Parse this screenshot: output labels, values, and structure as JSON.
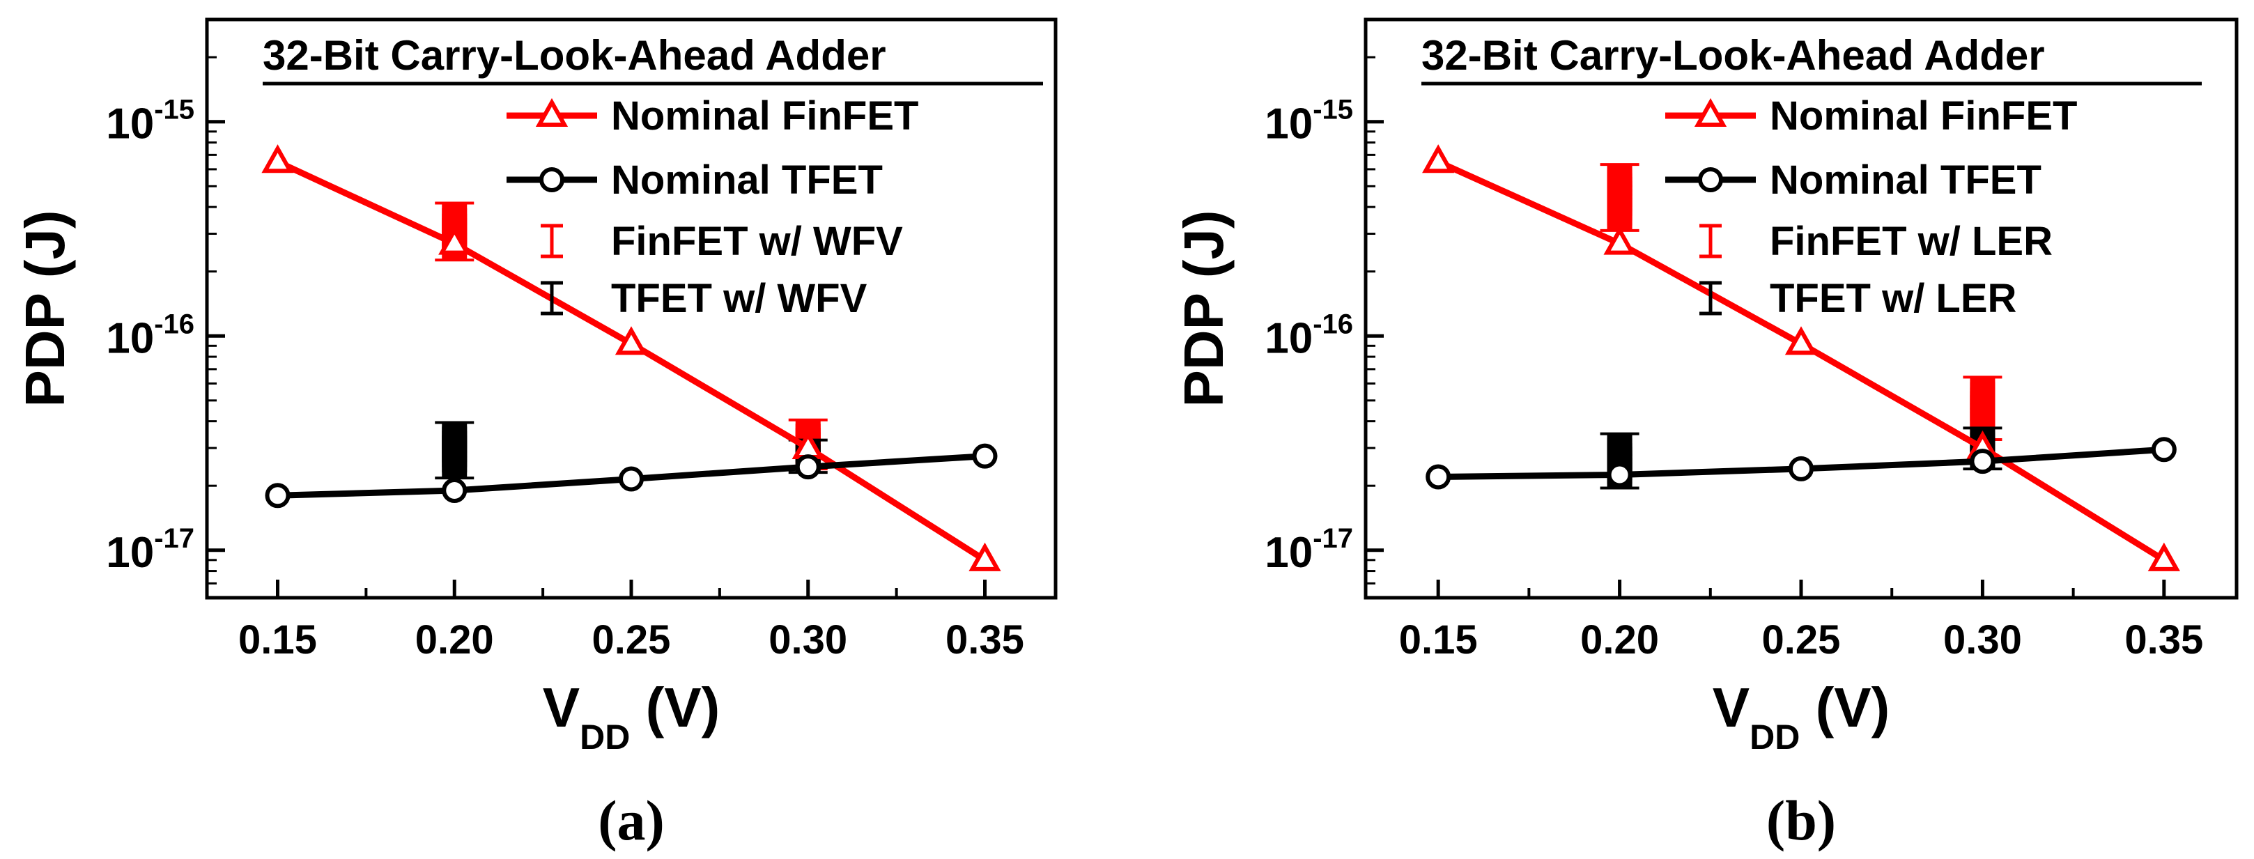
{
  "colors": {
    "finfet": "#ff0000",
    "tfet": "#000000",
    "axis": "#000000"
  },
  "chart_data": [
    {
      "type": "line",
      "panel_label": "(a)",
      "title": "32-Bit Carry-Look-Ahead Adder",
      "xlabel": "V",
      "xlabel_sub": "DD",
      "xlabel_unit": " (V)",
      "ylabel": "PDP (J)",
      "xlim": [
        0.13,
        0.37
      ],
      "ylim": [
        6e-18,
        3e-15
      ],
      "yscale": "log",
      "x_ticks": [
        0.15,
        0.2,
        0.25,
        0.3,
        0.35
      ],
      "x_tick_labels": [
        "0.15",
        "0.20",
        "0.25",
        "0.30",
        "0.35"
      ],
      "y_ticks": [
        {
          "value": 1e-15,
          "base": "10",
          "exp": "-15"
        },
        {
          "value": 1e-16,
          "base": "10",
          "exp": "-16"
        },
        {
          "value": 1e-17,
          "base": "10",
          "exp": "-17"
        }
      ],
      "legend_position": "top-right",
      "series": [
        {
          "name": "Nominal FinFET",
          "color": "#ff0000",
          "marker": "triangle",
          "x": [
            0.15,
            0.2,
            0.25,
            0.3,
            0.35
          ],
          "y": [
            6.5e-16,
            2.7e-16,
            9.2e-17,
            3e-17,
            9e-18
          ]
        },
        {
          "name": "Nominal TFET",
          "color": "#000000",
          "marker": "circle",
          "x": [
            0.15,
            0.2,
            0.25,
            0.3,
            0.35
          ],
          "y": [
            1.8e-17,
            1.9e-17,
            2.15e-17,
            2.45e-17,
            2.75e-17
          ]
        }
      ],
      "variation": [
        {
          "name": "FinFET w/ WFV",
          "color": "#ff0000",
          "groups": [
            {
              "x": 0.2,
              "values": [
                2.55e-16,
                2.7e-16,
                2.85e-16,
                3e-16,
                3.15e-16,
                3.3e-16,
                3.5e-16,
                3.7e-16
              ]
            },
            {
              "x": 0.3,
              "values": [
                2.7e-17,
                2.85e-17,
                3e-17,
                3.15e-17,
                3.3e-17,
                3.45e-17,
                3.6e-17
              ]
            }
          ]
        },
        {
          "name": "TFET w/ WFV",
          "color": "#000000",
          "groups": [
            {
              "x": 0.2,
              "values": [
                2.45e-17,
                2.6e-17,
                2.75e-17,
                2.9e-17,
                3.05e-17,
                3.2e-17,
                3.35e-17,
                3.5e-17
              ]
            },
            {
              "x": 0.3,
              "values": [
                2.6e-17,
                2.75e-17,
                2.9e-17
              ]
            }
          ]
        }
      ]
    },
    {
      "type": "line",
      "panel_label": "(b)",
      "title": "32-Bit Carry-Look-Ahead Adder",
      "xlabel": "V",
      "xlabel_sub": "DD",
      "xlabel_unit": " (V)",
      "ylabel": "PDP (J)",
      "xlim": [
        0.13,
        0.37
      ],
      "ylim": [
        6e-18,
        3e-15
      ],
      "yscale": "log",
      "x_ticks": [
        0.15,
        0.2,
        0.25,
        0.3,
        0.35
      ],
      "x_tick_labels": [
        "0.15",
        "0.20",
        "0.25",
        "0.30",
        "0.35"
      ],
      "y_ticks": [
        {
          "value": 1e-15,
          "base": "10",
          "exp": "-15"
        },
        {
          "value": 1e-16,
          "base": "10",
          "exp": "-16"
        },
        {
          "value": 1e-17,
          "base": "10",
          "exp": "-17"
        }
      ],
      "legend_position": "top-right",
      "series": [
        {
          "name": "Nominal FinFET",
          "color": "#ff0000",
          "marker": "triangle",
          "x": [
            0.15,
            0.2,
            0.25,
            0.3,
            0.35
          ],
          "y": [
            6.5e-16,
            2.7e-16,
            9.2e-17,
            3e-17,
            9e-18
          ]
        },
        {
          "name": "Nominal TFET",
          "color": "#000000",
          "marker": "circle",
          "x": [
            0.15,
            0.2,
            0.25,
            0.3,
            0.35
          ],
          "y": [
            2.2e-17,
            2.25e-17,
            2.4e-17,
            2.6e-17,
            2.95e-17
          ]
        }
      ],
      "variation": [
        {
          "name": "FinFET w/ LER",
          "color": "#ff0000",
          "groups": [
            {
              "x": 0.2,
              "values": [
                3.5e-16,
                3.7e-16,
                3.9e-16,
                4.1e-16,
                4.3e-16,
                4.5e-16,
                4.7e-16,
                4.9e-16,
                5.1e-16,
                5.3e-16,
                5.6e-16
              ]
            },
            {
              "x": 0.3,
              "values": [
                3.7e-17,
                3.9e-17,
                4.1e-17,
                4.3e-17,
                4.5e-17,
                4.7e-17,
                4.9e-17,
                5.1e-17,
                5.4e-17,
                5.7e-17
              ]
            }
          ]
        },
        {
          "name": "TFET w/ LER",
          "color": "#000000",
          "groups": [
            {
              "x": 0.2,
              "values": [
                2.2e-17,
                2.3e-17,
                2.4e-17,
                2.5e-17,
                2.6e-17,
                2.7e-17,
                2.8e-17,
                2.95e-17,
                3.1e-17
              ]
            },
            {
              "x": 0.3,
              "values": [
                2.7e-17,
                2.85e-17,
                3e-17,
                3.15e-17,
                3.3e-17
              ]
            }
          ]
        }
      ]
    }
  ]
}
